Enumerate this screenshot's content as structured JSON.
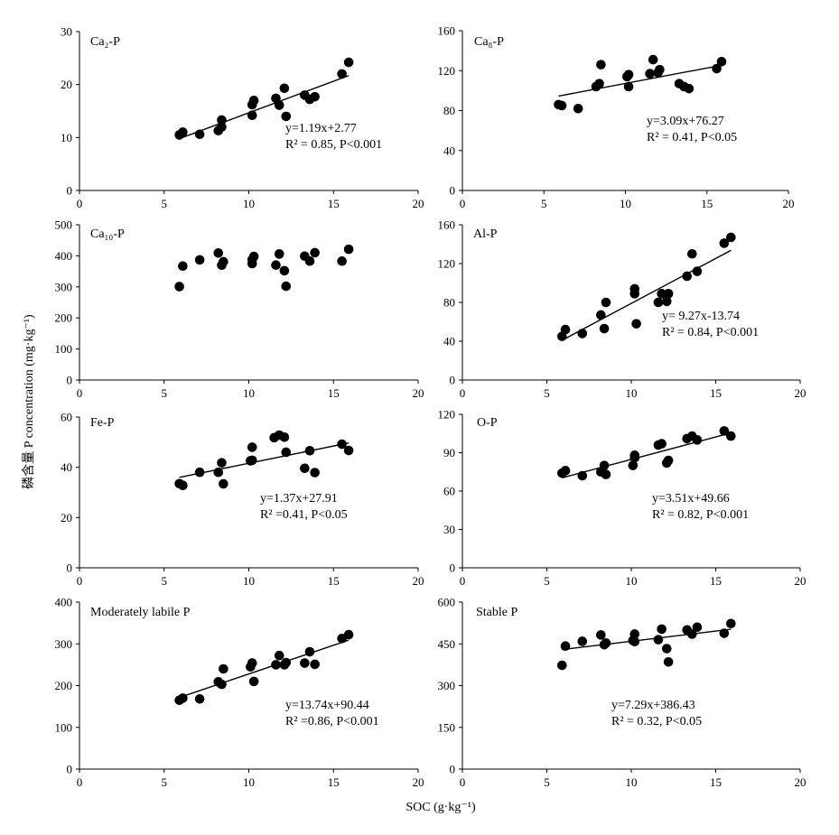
{
  "figure": {
    "xlabel": "SOC (g·kg⁻¹)",
    "ylabel": "磷含量 P concentration (mg·kg⁻¹)"
  },
  "chart_data": [
    {
      "type": "scatter",
      "label": "Ca₂-P",
      "xlim": [
        0,
        20
      ],
      "xticks": [
        0,
        5,
        10,
        15,
        20
      ],
      "ylim": [
        0,
        30
      ],
      "yticks": [
        0,
        10,
        20,
        30
      ],
      "x": [
        5.9,
        6.1,
        7.1,
        8.2,
        8.4,
        8.4,
        10.2,
        10.2,
        10.3,
        11.6,
        11.8,
        12.1,
        12.2,
        13.3,
        13.6,
        13.9,
        15.5,
        15.9
      ],
      "y": [
        10.5,
        11.0,
        10.6,
        11.3,
        12.0,
        13.3,
        16.2,
        14.2,
        17.0,
        17.4,
        16.1,
        19.3,
        14.0,
        18.0,
        17.2,
        17.7,
        22.0,
        24.2
      ],
      "fit": {
        "slope": 1.19,
        "intercept": 2.77
      },
      "equation": "y=1.19x+2.77",
      "stats": "R² = 0.85, P<0.001"
    },
    {
      "type": "scatter",
      "label": "Ca₈-P",
      "xlim": [
        0,
        20
      ],
      "xticks": [
        0,
        5,
        10,
        15,
        20
      ],
      "ylim": [
        0,
        160
      ],
      "yticks": [
        0,
        40,
        80,
        120,
        160
      ],
      "x": [
        5.9,
        6.1,
        7.1,
        8.2,
        8.4,
        8.5,
        10.1,
        10.2,
        10.2,
        11.5,
        11.7,
        12.0,
        12.1,
        13.3,
        13.6,
        13.9,
        15.6,
        15.9
      ],
      "y": [
        86,
        85,
        82,
        104,
        107,
        126,
        114,
        104,
        116,
        117,
        131,
        118,
        121,
        107,
        104,
        102,
        122,
        129
      ],
      "fit": {
        "slope": 3.09,
        "intercept": 76.27
      },
      "equation": "y=3.09x+76.27",
      "stats": "R² = 0.41, P<0.05"
    },
    {
      "type": "scatter",
      "label": "Ca₁₀-P",
      "xlim": [
        0,
        20
      ],
      "xticks": [
        0,
        5,
        10,
        15,
        20
      ],
      "ylim": [
        0,
        500
      ],
      "yticks": [
        0,
        100,
        200,
        300,
        400,
        500
      ],
      "x": [
        5.9,
        6.1,
        7.1,
        8.2,
        8.4,
        8.5,
        10.2,
        10.2,
        10.3,
        11.6,
        11.8,
        12.1,
        12.2,
        13.3,
        13.6,
        13.9,
        15.5,
        15.9
      ],
      "y": [
        301,
        367,
        387,
        409,
        370,
        381,
        388,
        375,
        398,
        370,
        406,
        352,
        302,
        399,
        383,
        410,
        383,
        421
      ],
      "fit": null,
      "equation": "",
      "stats": ""
    },
    {
      "type": "scatter",
      "label": "Al-P",
      "xlim": [
        0,
        20
      ],
      "xticks": [
        0,
        5,
        10,
        15,
        20
      ],
      "ylim": [
        0,
        160
      ],
      "yticks": [
        0,
        40,
        80,
        120,
        160
      ],
      "x": [
        5.9,
        6.1,
        7.1,
        8.2,
        8.4,
        8.5,
        10.2,
        10.2,
        10.3,
        11.6,
        11.8,
        12.1,
        12.2,
        13.3,
        13.6,
        13.9,
        15.5,
        15.9
      ],
      "y": [
        45,
        52,
        48,
        67,
        53,
        80,
        89,
        94,
        58,
        80,
        89,
        81,
        89,
        107,
        130,
        112,
        141,
        147
      ],
      "fit": {
        "slope": 9.27,
        "intercept": -13.74
      },
      "equation": "y= 9.27x-13.74",
      "stats": "R² = 0.84, P<0.001"
    },
    {
      "type": "scatter",
      "label": "Fe-P",
      "xlim": [
        0,
        20
      ],
      "xticks": [
        0,
        5,
        10,
        15,
        20
      ],
      "ylim": [
        0,
        60
      ],
      "yticks": [
        0,
        20,
        40,
        60
      ],
      "x": [
        5.9,
        6.1,
        7.1,
        8.2,
        8.4,
        8.5,
        10.1,
        10.2,
        10.2,
        11.5,
        11.8,
        12.1,
        12.2,
        13.3,
        13.6,
        13.9,
        15.5,
        15.9
      ],
      "y": [
        33.5,
        32.8,
        38.0,
        38.0,
        41.8,
        33.4,
        42.6,
        42.8,
        48.0,
        51.8,
        52.8,
        52.0,
        46.0,
        39.6,
        46.6,
        37.9,
        49.2,
        46.7
      ],
      "fit": {
        "slope": 1.37,
        "intercept": 27.91
      },
      "equation": "y=1.37x+27.91",
      "stats": "R² =0.41, P<0.05"
    },
    {
      "type": "scatter",
      "label": "O-P",
      "xlim": [
        0,
        20
      ],
      "xticks": [
        0,
        5,
        10,
        15,
        20
      ],
      "ylim": [
        0,
        120
      ],
      "yticks": [
        0,
        30,
        60,
        90,
        120
      ],
      "x": [
        5.9,
        6.1,
        7.1,
        8.2,
        8.4,
        8.5,
        10.1,
        10.2,
        10.2,
        11.6,
        11.8,
        12.1,
        12.2,
        13.3,
        13.6,
        13.9,
        15.5,
        15.9
      ],
      "y": [
        74,
        76,
        72,
        75,
        80,
        73,
        80,
        86,
        88,
        96,
        97,
        82,
        84,
        101,
        103,
        100,
        107,
        103
      ],
      "fit": {
        "slope": 3.51,
        "intercept": 49.66
      },
      "equation": "y=3.51x+49.66",
      "stats": "R² = 0.82, P<0.001"
    },
    {
      "type": "scatter",
      "label": "Moderately labile P",
      "xlim": [
        0,
        20
      ],
      "xticks": [
        0,
        5,
        10,
        15,
        20
      ],
      "ylim": [
        0,
        400
      ],
      "yticks": [
        0,
        100,
        200,
        300,
        400
      ],
      "x": [
        5.9,
        6.1,
        7.1,
        8.2,
        8.4,
        8.5,
        10.1,
        10.2,
        10.3,
        11.6,
        11.8,
        12.1,
        12.2,
        13.3,
        13.6,
        13.9,
        15.5,
        15.9
      ],
      "y": [
        165,
        170,
        168,
        209,
        203,
        240,
        245,
        254,
        210,
        250,
        272,
        250,
        255,
        254,
        281,
        251,
        313,
        322
      ],
      "fit": {
        "slope": 13.74,
        "intercept": 90.44
      },
      "equation": "y=13.74x+90.44",
      "stats": "R² =0.86, P<0.001"
    },
    {
      "type": "scatter",
      "label": "Stable P",
      "xlim": [
        0,
        20
      ],
      "xticks": [
        0,
        5,
        10,
        15,
        20
      ],
      "ylim": [
        0,
        600
      ],
      "yticks": [
        0,
        150,
        300,
        450,
        600
      ],
      "x": [
        5.9,
        6.1,
        7.1,
        8.2,
        8.4,
        8.5,
        10.1,
        10.2,
        10.2,
        11.6,
        11.8,
        12.1,
        12.2,
        13.3,
        13.6,
        13.9,
        15.5,
        15.9
      ],
      "y": [
        373,
        442,
        459,
        482,
        447,
        453,
        462,
        458,
        485,
        465,
        503,
        433,
        385,
        500,
        485,
        510,
        488,
        523
      ],
      "fit": {
        "slope": 7.29,
        "intercept": 386.43
      },
      "equation": "y=7.29x+386.43",
      "stats": "R² = 0.32, P<0.05"
    }
  ]
}
